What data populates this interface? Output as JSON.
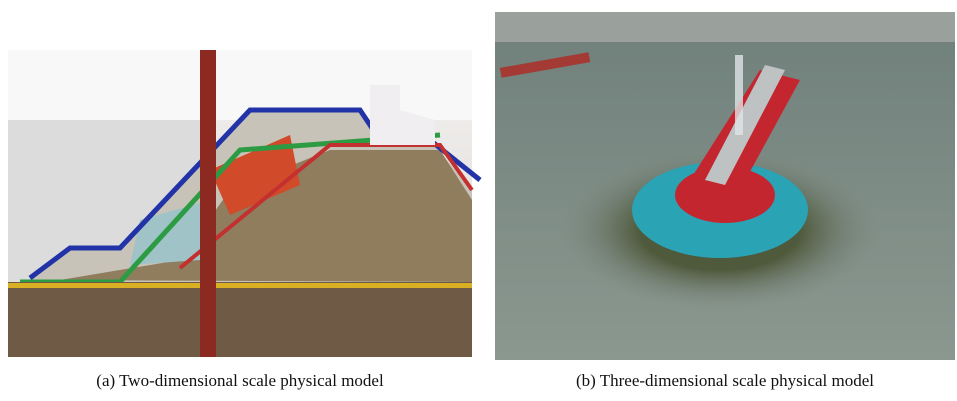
{
  "figures": [
    {
      "caption": "(a) Two-dimensional scale physical model"
    },
    {
      "caption": "(b) Three-dimensional scale physical model"
    }
  ]
}
